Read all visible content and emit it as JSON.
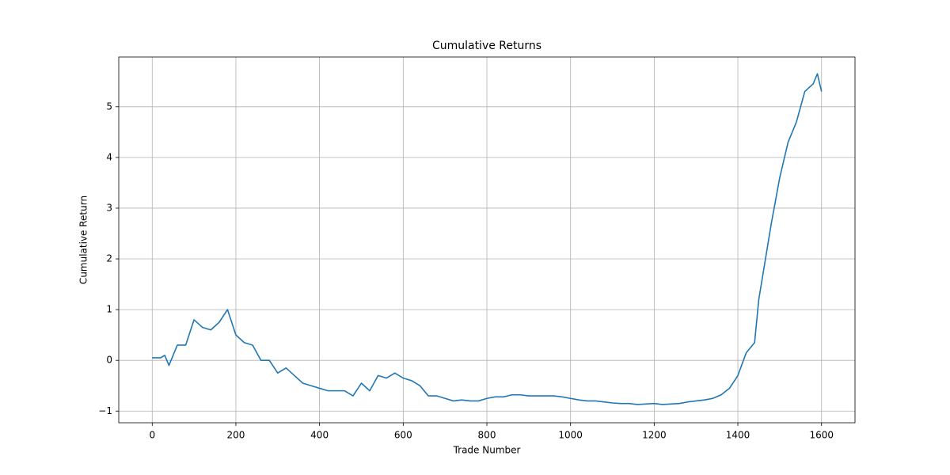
{
  "chart_data": {
    "type": "line",
    "title": "Cumulative Returns",
    "x_label": "Trade Number",
    "y_label": "Cumulative Return",
    "x": [
      0,
      20,
      30,
      40,
      60,
      80,
      100,
      120,
      140,
      160,
      180,
      200,
      220,
      240,
      260,
      280,
      300,
      320,
      340,
      360,
      380,
      400,
      420,
      440,
      460,
      480,
      500,
      520,
      540,
      560,
      580,
      600,
      620,
      640,
      660,
      680,
      700,
      720,
      740,
      760,
      780,
      800,
      820,
      840,
      860,
      880,
      900,
      920,
      940,
      960,
      980,
      1000,
      1020,
      1040,
      1060,
      1080,
      1100,
      1120,
      1140,
      1160,
      1180,
      1200,
      1220,
      1240,
      1260,
      1280,
      1300,
      1320,
      1340,
      1360,
      1380,
      1400,
      1420,
      1440,
      1450,
      1460,
      1480,
      1500,
      1520,
      1540,
      1560,
      1580,
      1590,
      1600
    ],
    "series": [
      {
        "name": "Cumulative Return",
        "color": "#1f77b4",
        "values": [
          0.05,
          0.05,
          0.1,
          -0.1,
          0.3,
          0.3,
          0.8,
          0.65,
          0.6,
          0.75,
          1.0,
          0.5,
          0.35,
          0.3,
          0.0,
          0.0,
          -0.25,
          -0.15,
          -0.3,
          -0.45,
          -0.5,
          -0.55,
          -0.6,
          -0.6,
          -0.6,
          -0.7,
          -0.45,
          -0.6,
          -0.3,
          -0.35,
          -0.25,
          -0.35,
          -0.4,
          -0.5,
          -0.7,
          -0.7,
          -0.75,
          -0.8,
          -0.78,
          -0.8,
          -0.8,
          -0.75,
          -0.72,
          -0.72,
          -0.68,
          -0.68,
          -0.7,
          -0.7,
          -0.7,
          -0.7,
          -0.72,
          -0.75,
          -0.78,
          -0.8,
          -0.8,
          -0.82,
          -0.84,
          -0.85,
          -0.85,
          -0.87,
          -0.86,
          -0.85,
          -0.87,
          -0.86,
          -0.85,
          -0.82,
          -0.8,
          -0.78,
          -0.75,
          -0.68,
          -0.55,
          -0.3,
          0.15,
          0.35,
          1.2,
          1.7,
          2.7,
          3.6,
          4.3,
          4.7,
          5.3,
          5.45,
          5.65,
          5.3
        ]
      }
    ],
    "xlim": [
      -80,
      1680
    ],
    "ylim": [
      -1.23,
      5.98
    ],
    "xticks": [
      0,
      200,
      400,
      600,
      800,
      1000,
      1200,
      1400,
      1600
    ],
    "yticks": [
      {
        "value": -1,
        "label": "−1"
      },
      0,
      1,
      2,
      3,
      4,
      5
    ],
    "grid": true
  }
}
